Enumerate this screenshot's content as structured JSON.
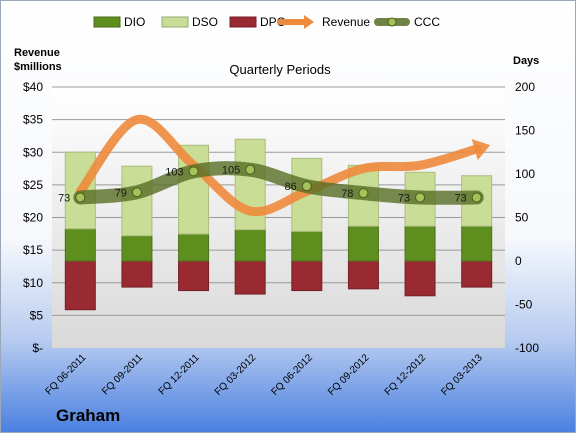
{
  "chart_data": {
    "type": "bar",
    "title": "Quarterly Periods",
    "company": "Graham",
    "left_axis_label": [
      "Revenue",
      "$millions"
    ],
    "right_axis_label": "Days",
    "categories": [
      "FQ 06-2011",
      "FQ 09-2011",
      "FQ 12-2011",
      "FQ 03-2012",
      "FQ 06-2012",
      "FQ 09-2012",
      "FQ 12-2012",
      "FQ 03-2013"
    ],
    "left_ticks": [
      "$-",
      "$5",
      "$10",
      "$15",
      "$20",
      "$25",
      "$30",
      "$35",
      "$40"
    ],
    "right_ticks": [
      "-100",
      "-50",
      "0",
      "50",
      "100",
      "150",
      "200"
    ],
    "ylim_left": [
      0,
      40
    ],
    "ylim_right": [
      -100,
      200
    ],
    "series": [
      {
        "name": "DIO",
        "type": "stacked-bar",
        "axis": "right",
        "values": [
          37,
          29,
          31,
          36,
          34,
          40,
          40,
          40
        ]
      },
      {
        "name": "DSO",
        "type": "stacked-bar",
        "axis": "right",
        "values": [
          88,
          80,
          102,
          104,
          84,
          70,
          62,
          58
        ]
      },
      {
        "name": "DPO",
        "type": "negative-bar",
        "axis": "right",
        "values": [
          -56,
          -30,
          -34,
          -38,
          -34,
          -32,
          -40,
          -30
        ]
      },
      {
        "name": "Revenue",
        "type": "line",
        "axis": "left",
        "values": [
          24,
          35,
          28,
          21,
          24,
          27.5,
          28,
          30.5
        ]
      },
      {
        "name": "CCC",
        "type": "line",
        "axis": "right",
        "values": [
          73,
          79,
          103,
          105,
          86,
          78,
          73,
          73
        ]
      }
    ],
    "data_labels": [
      "73",
      "79",
      "103",
      "105",
      "86",
      "78",
      "73",
      "73"
    ],
    "colors": {
      "DIO": "#5e8f1e",
      "DSO": "#c9dd96",
      "DPO": "#9a2a32",
      "Revenue": "#ee8a3c",
      "CCC": "#586e26"
    },
    "legend_position": "top",
    "grid": true
  }
}
